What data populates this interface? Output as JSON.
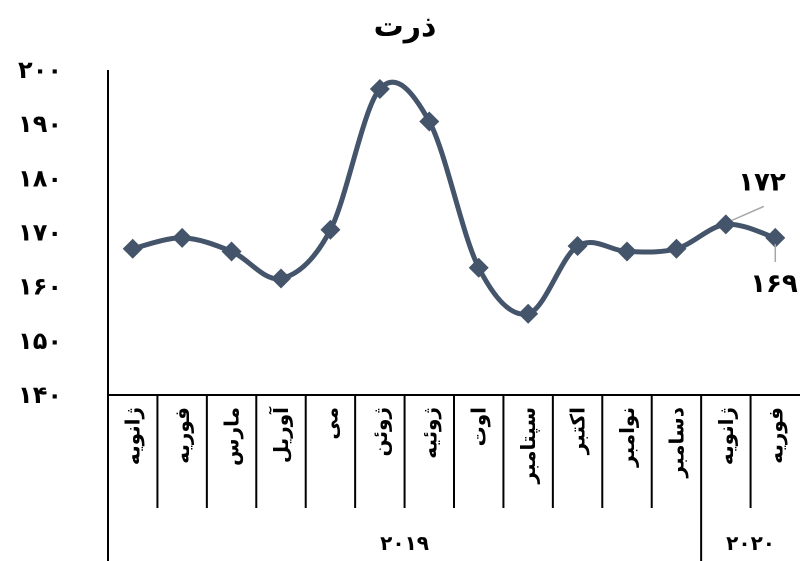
{
  "chart_data": {
    "type": "line",
    "title": "ذرت",
    "ylim": [
      140,
      200
    ],
    "yticks": [
      {
        "value": 140,
        "label": "۱۴۰"
      },
      {
        "value": 150,
        "label": "۱۵۰"
      },
      {
        "value": 160,
        "label": "۱۶۰"
      },
      {
        "value": 170,
        "label": "۱۷۰"
      },
      {
        "value": 180,
        "label": "۱۸۰"
      },
      {
        "value": 190,
        "label": "۱۹۰"
      },
      {
        "value": 200,
        "label": "۲۰۰"
      }
    ],
    "categories": [
      "ژانویه",
      "فوریه",
      "مارس",
      "آوریل",
      "می",
      "ژوئن",
      "ژوئیه",
      "اوت",
      "سپتامبر",
      "اکتبر",
      "نوامبر",
      "دسامبر",
      "ژانویه",
      "فوریه"
    ],
    "groups": [
      {
        "label": "۲۰۱۹",
        "count": 12
      },
      {
        "label": "۲۰۲۰",
        "count": 2
      }
    ],
    "series": [
      {
        "values": [
          167,
          169,
          166.5,
          161.5,
          170.5,
          196.5,
          190.5,
          163.5,
          155,
          167.5,
          166.5,
          167,
          171.5,
          169
        ]
      }
    ],
    "data_labels": [
      {
        "index": 12,
        "text": "۱۷۲",
        "position": "above"
      },
      {
        "index": 13,
        "text": "۱۶۹",
        "position": "below"
      }
    ],
    "grid": false,
    "legend": "none",
    "colors": {
      "series": "#44546a",
      "leader": "#a6a6a6",
      "axis": "#000000"
    }
  }
}
